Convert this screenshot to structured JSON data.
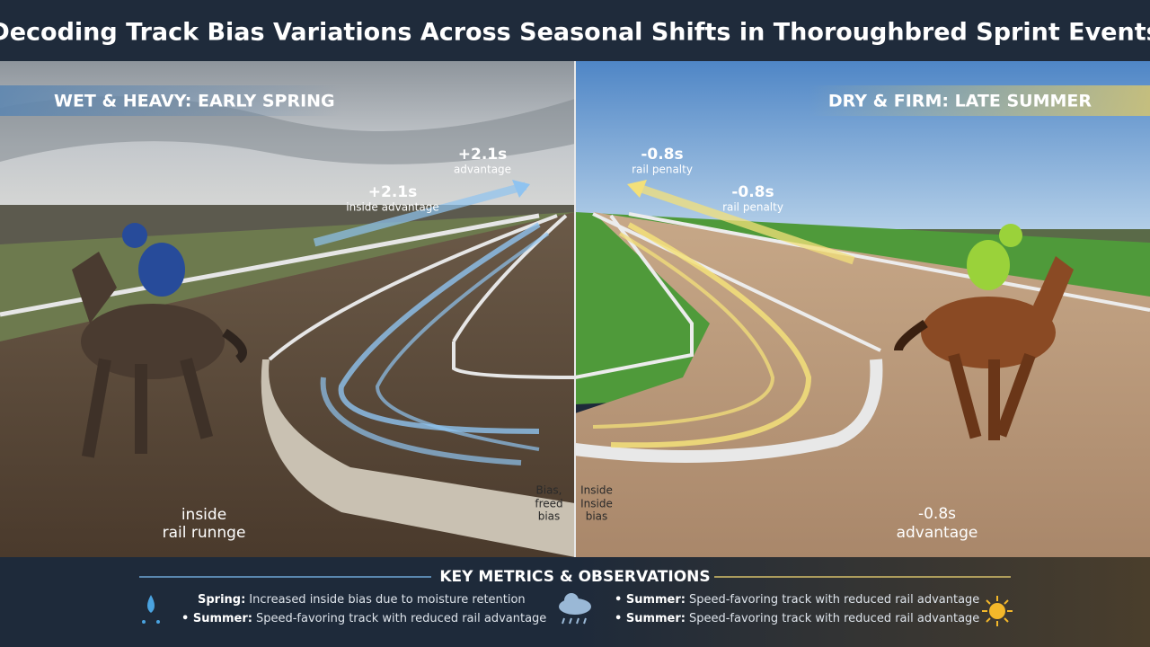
{
  "header": {
    "title": "Decoding Track Bias Variations Across Seasonal Shifts in Thoroughbred Sprint Events"
  },
  "panels": [
    {
      "label": "WET & HEAVY: EARLY SPRING",
      "notes": [
        [
          "+2.1s",
          "advantage"
        ],
        [
          "+2.1s",
          "inside advantage"
        ],
        [
          "inside",
          "rail runnge"
        ],
        [
          "Bias,",
          "freed",
          "bias"
        ]
      ]
    },
    {
      "label": "DRY & FIRM: LATE SUMMER",
      "notes": [
        [
          "-0.8s",
          "rail penalty"
        ],
        [
          "-0.8s",
          "rail penalty"
        ],
        [
          "Inside",
          "Inside",
          "bias"
        ],
        [
          "-0.8s",
          "advantage"
        ]
      ]
    }
  ],
  "footer": {
    "title": "KEY METRICS & OBSERVATIONS",
    "left": [
      [
        "Spring:",
        "Increased inside bias due to moisture retention"
      ],
      [
        "• Summer:",
        "Speed-favoring track with reduced rail advantage"
      ]
    ],
    "right": [
      [
        "• Summer:",
        "Speed-favoring track with reduced rail advantage"
      ],
      [
        "• Summer:",
        "Speed-favoring track with reduced rail advantage"
      ]
    ]
  }
}
